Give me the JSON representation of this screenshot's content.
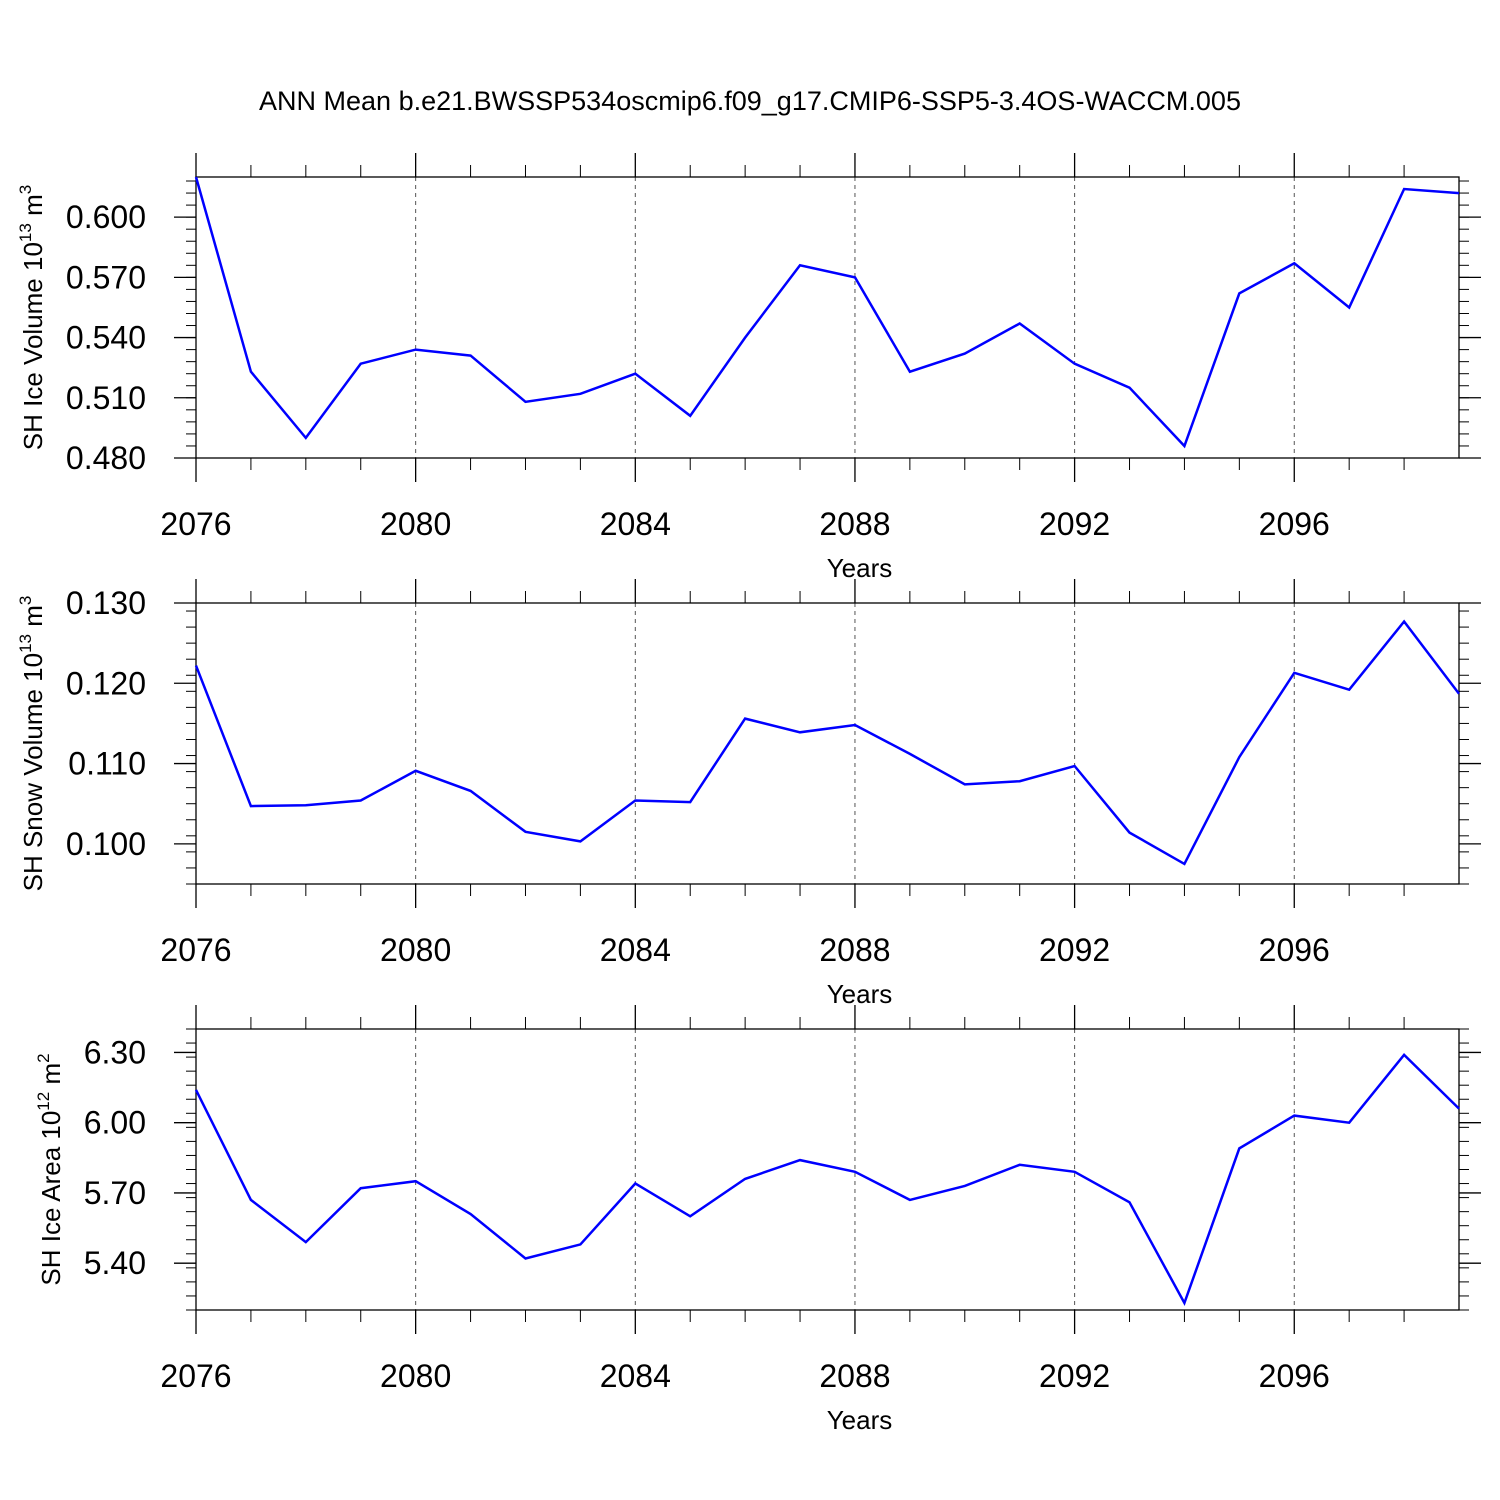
{
  "title": "ANN Mean b.e21.BWSSP534oscmip6.f09_g17.CMIP6-SSP5-3.4OS-WACCM.005",
  "colors": {
    "line": "#0000ff",
    "axis": "#000000",
    "grid": "#555555"
  },
  "chart_data": [
    {
      "type": "line",
      "ylabel_main": "SH Ice Volume 10",
      "ylabel_exp": "13",
      "ylabel_unit": " m",
      "ylabel_unit_exp": "3",
      "xlabel": "Years",
      "xlim": [
        2076,
        2099
      ],
      "ylim": [
        0.48,
        0.62
      ],
      "xticks": [
        2076,
        2080,
        2084,
        2088,
        2092,
        2096
      ],
      "xtick_labels": [
        "2076",
        "2080",
        "2084",
        "2088",
        "2092",
        "2096"
      ],
      "yticks": [
        0.48,
        0.51,
        0.54,
        0.57,
        0.6
      ],
      "ytick_labels": [
        "0.480",
        "0.510",
        "0.540",
        "0.570",
        "0.600"
      ],
      "yminor_step": 0.006,
      "x": [
        2076,
        2077,
        2078,
        2079,
        2080,
        2081,
        2082,
        2083,
        2084,
        2085,
        2086,
        2087,
        2088,
        2089,
        2090,
        2091,
        2092,
        2093,
        2094,
        2095,
        2096,
        2097,
        2098,
        2099
      ],
      "values": [
        0.62,
        0.523,
        0.49,
        0.527,
        0.534,
        0.531,
        0.508,
        0.512,
        0.522,
        0.501,
        0.54,
        0.576,
        0.57,
        0.523,
        0.532,
        0.547,
        0.527,
        0.515,
        0.486,
        0.562,
        0.577,
        0.555,
        0.614,
        0.612
      ]
    },
    {
      "type": "line",
      "ylabel_main": "SH Snow Volume 10",
      "ylabel_exp": "13",
      "ylabel_unit": " m",
      "ylabel_unit_exp": "3",
      "xlabel": "Years",
      "xlim": [
        2076,
        2099
      ],
      "ylim": [
        0.095,
        0.13
      ],
      "xticks": [
        2076,
        2080,
        2084,
        2088,
        2092,
        2096
      ],
      "xtick_labels": [
        "2076",
        "2080",
        "2084",
        "2088",
        "2092",
        "2096"
      ],
      "yticks": [
        0.1,
        0.11,
        0.12,
        0.13
      ],
      "ytick_labels": [
        "0.100",
        "0.110",
        "0.120",
        "0.130"
      ],
      "yminor_step": 0.002,
      "x": [
        2076,
        2077,
        2078,
        2079,
        2080,
        2081,
        2082,
        2083,
        2084,
        2085,
        2086,
        2087,
        2088,
        2089,
        2090,
        2091,
        2092,
        2093,
        2094,
        2095,
        2096,
        2097,
        2098,
        2099
      ],
      "values": [
        0.1222,
        0.1047,
        0.1048,
        0.1054,
        0.1091,
        0.1066,
        0.1015,
        0.1003,
        0.1054,
        0.1052,
        0.1156,
        0.1139,
        0.1148,
        0.1112,
        0.1074,
        0.1078,
        0.1097,
        0.1014,
        0.0975,
        0.1108,
        0.1213,
        0.1192,
        0.1277,
        0.1187
      ]
    },
    {
      "type": "line",
      "ylabel_main": "SH Ice Area 10",
      "ylabel_exp": "12",
      "ylabel_unit": " m",
      "ylabel_unit_exp": "2",
      "xlabel": "Years",
      "xlim": [
        2076,
        2099
      ],
      "ylim": [
        5.2,
        6.4
      ],
      "xticks": [
        2076,
        2080,
        2084,
        2088,
        2092,
        2096
      ],
      "xtick_labels": [
        "2076",
        "2080",
        "2084",
        "2088",
        "2092",
        "2096"
      ],
      "yticks": [
        5.4,
        5.7,
        6.0,
        6.3
      ],
      "ytick_labels": [
        "5.40",
        "5.70",
        "6.00",
        "6.30"
      ],
      "yminor_step": 0.06,
      "x": [
        2076,
        2077,
        2078,
        2079,
        2080,
        2081,
        2082,
        2083,
        2084,
        2085,
        2086,
        2087,
        2088,
        2089,
        2090,
        2091,
        2092,
        2093,
        2094,
        2095,
        2096,
        2097,
        2098,
        2099
      ],
      "values": [
        6.14,
        5.67,
        5.49,
        5.72,
        5.75,
        5.61,
        5.42,
        5.48,
        5.74,
        5.6,
        5.76,
        5.84,
        5.79,
        5.67,
        5.73,
        5.82,
        5.79,
        5.66,
        5.23,
        5.89,
        6.03,
        6.0,
        6.29,
        6.06
      ]
    }
  ]
}
